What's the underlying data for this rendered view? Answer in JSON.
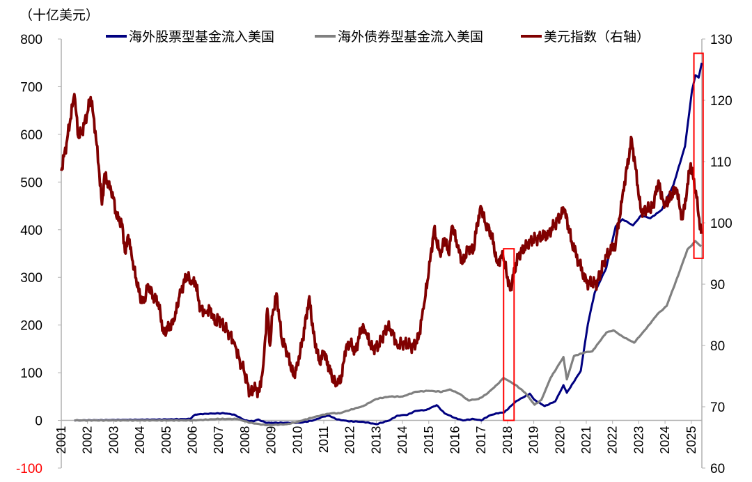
{
  "chart_data": {
    "type": "line",
    "unit_label": "（十亿美元）",
    "left_axis": {
      "ylim": [
        -100,
        800
      ],
      "ticks": [
        "800",
        "700",
        "600",
        "500",
        "400",
        "300",
        "200",
        "100",
        "0",
        "-100"
      ],
      "negative_tick_color": "#ff0000"
    },
    "right_axis": {
      "ylim": [
        60,
        130
      ],
      "ticks": [
        "130",
        "120",
        "110",
        "100",
        "90",
        "80",
        "70",
        "60"
      ]
    },
    "x_ticks": [
      "2001",
      "2002",
      "2003",
      "2004",
      "2005",
      "2006",
      "2007",
      "2008",
      "2009",
      "2010",
      "2011",
      "2012",
      "2013",
      "2014",
      "2015",
      "2016",
      "2017",
      "2018",
      "2019",
      "2020",
      "2021",
      "2022",
      "2023",
      "2024",
      "2025"
    ],
    "grid": false,
    "legend_placement": "top",
    "series": [
      {
        "name": "海外股票型基金流入美国",
        "axis": "left",
        "color": "#000080",
        "points": [
          [
            2001.5,
            0
          ],
          [
            2005.0,
            2
          ],
          [
            2005.9,
            3
          ],
          [
            2006.1,
            12
          ],
          [
            2006.5,
            14
          ],
          [
            2007.2,
            15
          ],
          [
            2007.6,
            12
          ],
          [
            2008.0,
            0
          ],
          [
            2008.3,
            -2
          ],
          [
            2008.5,
            2
          ],
          [
            2008.8,
            -5
          ],
          [
            2009.5,
            -5
          ],
          [
            2010.1,
            -5
          ],
          [
            2010.6,
            0
          ],
          [
            2011.0,
            8
          ],
          [
            2011.2,
            10
          ],
          [
            2011.5,
            2
          ],
          [
            2012.0,
            -2
          ],
          [
            2012.5,
            -3
          ],
          [
            2013.0,
            -8
          ],
          [
            2013.5,
            0
          ],
          [
            2013.8,
            10
          ],
          [
            2014.2,
            12
          ],
          [
            2014.5,
            20
          ],
          [
            2014.9,
            22
          ],
          [
            2015.3,
            32
          ],
          [
            2015.6,
            15
          ],
          [
            2016.0,
            5
          ],
          [
            2016.3,
            0
          ],
          [
            2016.7,
            3
          ],
          [
            2017.0,
            0
          ],
          [
            2017.3,
            10
          ],
          [
            2017.6,
            15
          ],
          [
            2017.88,
            17
          ],
          [
            2018.32,
            40
          ],
          [
            2018.85,
            56
          ],
          [
            2019.03,
            43
          ],
          [
            2019.42,
            30
          ],
          [
            2019.82,
            40
          ],
          [
            2020.13,
            74
          ],
          [
            2020.26,
            58
          ],
          [
            2020.79,
            104
          ],
          [
            2021.06,
            202
          ],
          [
            2021.32,
            268
          ],
          [
            2021.76,
            320
          ],
          [
            2022.12,
            407
          ],
          [
            2022.38,
            422
          ],
          [
            2022.78,
            409
          ],
          [
            2023.09,
            430
          ],
          [
            2023.44,
            424
          ],
          [
            2023.88,
            442
          ],
          [
            2024.32,
            494
          ],
          [
            2024.76,
            575
          ],
          [
            2025.03,
            693
          ],
          [
            2025.16,
            724
          ],
          [
            2025.28,
            719
          ],
          [
            2025.4,
            750
          ]
        ]
      },
      {
        "name": "海外债券型基金流入美国",
        "axis": "left",
        "color": "#808080",
        "points": [
          [
            2001.5,
            0
          ],
          [
            2006.0,
            0
          ],
          [
            2007.0,
            3
          ],
          [
            2007.7,
            3
          ],
          [
            2008.2,
            -5
          ],
          [
            2008.8,
            -10
          ],
          [
            2009.6,
            -8
          ],
          [
            2010.0,
            -3
          ],
          [
            2010.5,
            5
          ],
          [
            2011.0,
            12
          ],
          [
            2011.3,
            15
          ],
          [
            2011.6,
            15
          ],
          [
            2012.0,
            22
          ],
          [
            2012.5,
            30
          ],
          [
            2013.0,
            45
          ],
          [
            2013.5,
            50
          ],
          [
            2014.0,
            50
          ],
          [
            2014.5,
            60
          ],
          [
            2015.0,
            62
          ],
          [
            2015.5,
            60
          ],
          [
            2015.8,
            65
          ],
          [
            2016.2,
            55
          ],
          [
            2016.5,
            42
          ],
          [
            2016.9,
            45
          ],
          [
            2017.2,
            55
          ],
          [
            2017.6,
            75
          ],
          [
            2017.85,
            89
          ],
          [
            2018.32,
            74
          ],
          [
            2018.67,
            58
          ],
          [
            2019.03,
            33
          ],
          [
            2019.29,
            43
          ],
          [
            2019.64,
            89
          ],
          [
            2020.13,
            133
          ],
          [
            2020.26,
            86
          ],
          [
            2020.53,
            135
          ],
          [
            2020.97,
            143
          ],
          [
            2021.23,
            145
          ],
          [
            2021.76,
            184
          ],
          [
            2022.03,
            189
          ],
          [
            2022.38,
            176
          ],
          [
            2022.82,
            163
          ],
          [
            2023.26,
            191
          ],
          [
            2023.7,
            222
          ],
          [
            2024.06,
            240
          ],
          [
            2024.5,
            304
          ],
          [
            2024.85,
            358
          ],
          [
            2025.16,
            376
          ],
          [
            2025.38,
            365
          ]
        ]
      },
      {
        "name": "美元指数（右轴）",
        "axis": "right",
        "color": "#800000",
        "points": [
          [
            2001.0,
            108.5
          ],
          [
            2001.2,
            113
          ],
          [
            2001.35,
            117
          ],
          [
            2001.5,
            121
          ],
          [
            2001.65,
            114
          ],
          [
            2001.8,
            115
          ],
          [
            2002.0,
            118
          ],
          [
            2002.12,
            120.5
          ],
          [
            2002.3,
            115
          ],
          [
            2002.45,
            108
          ],
          [
            2002.55,
            103
          ],
          [
            2002.65,
            108
          ],
          [
            2002.8,
            106
          ],
          [
            2002.95,
            105
          ],
          [
            2003.1,
            101
          ],
          [
            2003.3,
            100
          ],
          [
            2003.45,
            95
          ],
          [
            2003.55,
            98
          ],
          [
            2003.7,
            94
          ],
          [
            2003.85,
            91
          ],
          [
            2004.0,
            88
          ],
          [
            2004.15,
            87
          ],
          [
            2004.3,
            90
          ],
          [
            2004.5,
            88
          ],
          [
            2004.7,
            87
          ],
          [
            2004.9,
            82
          ],
          [
            2005.1,
            83
          ],
          [
            2005.3,
            84
          ],
          [
            2005.5,
            88
          ],
          [
            2005.65,
            90
          ],
          [
            2005.8,
            91.5
          ],
          [
            2005.95,
            90
          ],
          [
            2006.1,
            90.5
          ],
          [
            2006.3,
            86
          ],
          [
            2006.5,
            85.5
          ],
          [
            2006.7,
            86
          ],
          [
            2006.85,
            83.5
          ],
          [
            2007.0,
            84.5
          ],
          [
            2007.2,
            83
          ],
          [
            2007.4,
            82
          ],
          [
            2007.6,
            80.5
          ],
          [
            2007.8,
            77.5
          ],
          [
            2007.95,
            76
          ],
          [
            2008.2,
            72
          ],
          [
            2008.35,
            73
          ],
          [
            2008.55,
            72.5
          ],
          [
            2008.7,
            77
          ],
          [
            2008.85,
            86
          ],
          [
            2008.95,
            80
          ],
          [
            2009.05,
            85
          ],
          [
            2009.2,
            88.5
          ],
          [
            2009.4,
            81
          ],
          [
            2009.6,
            79
          ],
          [
            2009.85,
            75
          ],
          [
            2010.0,
            77
          ],
          [
            2010.2,
            81
          ],
          [
            2010.45,
            88
          ],
          [
            2010.6,
            82
          ],
          [
            2010.85,
            77
          ],
          [
            2011.0,
            79
          ],
          [
            2011.3,
            75
          ],
          [
            2011.5,
            73.5
          ],
          [
            2011.7,
            75
          ],
          [
            2011.8,
            79
          ],
          [
            2012.0,
            80.5
          ],
          [
            2012.2,
            79
          ],
          [
            2012.45,
            83
          ],
          [
            2012.6,
            82
          ],
          [
            2012.85,
            79.5
          ],
          [
            2013.1,
            80
          ],
          [
            2013.4,
            83
          ],
          [
            2013.6,
            82.5
          ],
          [
            2013.8,
            80
          ],
          [
            2014.0,
            80.5
          ],
          [
            2014.4,
            79.8
          ],
          [
            2014.6,
            81
          ],
          [
            2014.8,
            86
          ],
          [
            2015.0,
            92
          ],
          [
            2015.2,
            99
          ],
          [
            2015.3,
            97
          ],
          [
            2015.45,
            94.5
          ],
          [
            2015.6,
            97.5
          ],
          [
            2015.75,
            95
          ],
          [
            2015.9,
            99.5
          ],
          [
            2016.1,
            96
          ],
          [
            2016.3,
            93.5
          ],
          [
            2016.5,
            96
          ],
          [
            2016.7,
            95.5
          ],
          [
            2016.85,
            100
          ],
          [
            2017.0,
            102.5
          ],
          [
            2017.15,
            100
          ],
          [
            2017.4,
            98
          ],
          [
            2017.6,
            93.5
          ],
          [
            2017.83,
            94.6
          ],
          [
            2018.1,
            89
          ],
          [
            2018.4,
            94.6
          ],
          [
            2018.85,
            97
          ],
          [
            2019.56,
            98.2
          ],
          [
            2020.17,
            102.2
          ],
          [
            2020.44,
            97
          ],
          [
            2020.7,
            93.8
          ],
          [
            2021.01,
            90.2
          ],
          [
            2021.41,
            90.2
          ],
          [
            2021.76,
            94.6
          ],
          [
            2022.12,
            96.6
          ],
          [
            2022.38,
            104.5
          ],
          [
            2022.73,
            113.7
          ],
          [
            2023.09,
            101.8
          ],
          [
            2023.53,
            102.5
          ],
          [
            2023.75,
            106.9
          ],
          [
            2023.97,
            102.5
          ],
          [
            2024.41,
            105.7
          ],
          [
            2024.67,
            100.6
          ],
          [
            2024.98,
            109.7
          ],
          [
            2025.2,
            104.1
          ],
          [
            2025.38,
            98.2
          ]
        ]
      }
    ],
    "highlight_boxes": [
      {
        "x_range": [
          2017.85,
          2018.25
        ],
        "left_y_range": [
          0,
          360
        ],
        "color": "#ff0000"
      },
      {
        "x_range": [
          2025.1,
          2025.45
        ],
        "left_y_range": [
          340,
          770
        ],
        "color": "#ff0000"
      }
    ]
  }
}
